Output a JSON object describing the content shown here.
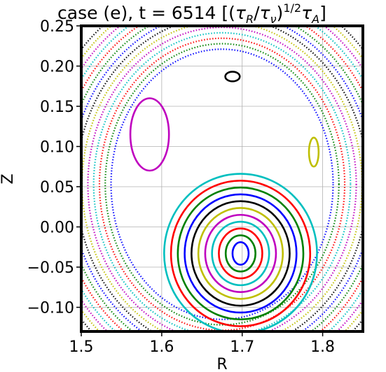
{
  "chart_data": {
    "type": "scatter",
    "title": "case (e), t = 6514 [(τR/τν)1/2τA]",
    "title_parts": {
      "prefix": "case (e), t = 6514 [(",
      "tau": "τ",
      "sub_r": "R",
      "slash": "/",
      "sub_nu": "ν",
      "close": ")",
      "exponent": "1/2",
      "sub_a": "A",
      "end": "]"
    },
    "xlabel": "R",
    "ylabel": "Z",
    "xlim": [
      1.5,
      1.85
    ],
    "ylim": [
      -0.13,
      0.25
    ],
    "xticks": [
      1.5,
      1.6,
      1.7,
      1.8
    ],
    "xtick_labels": [
      "1.5",
      "1.6",
      "1.7",
      "1.8"
    ],
    "yticks": [
      -0.1,
      -0.05,
      0.0,
      0.05,
      0.1,
      0.15,
      0.2,
      0.25
    ],
    "ytick_labels": [
      "−0.10",
      "−0.05",
      "0.00",
      "0.05",
      "0.10",
      "0.15",
      "0.20",
      "0.25"
    ],
    "grid": true,
    "palette": [
      "#0000ff",
      "#008000",
      "#ff0000",
      "#00bfbf",
      "#bf00bf",
      "#bfbf00",
      "#000000"
    ],
    "islands": [
      {
        "name": "lower-o-point",
        "center": [
          1.698,
          -0.033
        ],
        "base_semi_axes": [
          0.01,
          0.014
        ],
        "step": [
          0.0085,
          0.0085
        ],
        "count": 11,
        "style": "line"
      },
      {
        "name": "upper-left-o-point",
        "center": [
          1.585,
          0.115
        ],
        "base_semi_axes": [
          0.024,
          0.045
        ],
        "step": [
          0.0,
          0.0
        ],
        "count": 1,
        "style": "line"
      },
      {
        "name": "right-small-island",
        "center": [
          1.789,
          0.093
        ],
        "base_semi_axes": [
          0.006,
          0.018
        ],
        "step": [
          0.0,
          0.0
        ],
        "count": 1,
        "style": "line"
      },
      {
        "name": "top-small-island",
        "center": [
          1.688,
          0.187
        ],
        "base_semi_axes": [
          0.009,
          0.006
        ],
        "step": [
          0.0,
          0.0
        ],
        "count": 1,
        "style": "line"
      }
    ],
    "outer_surfaces": {
      "center": [
        1.675,
        0.053
      ],
      "base_semi_axes": [
        0.138,
        0.168
      ],
      "step": [
        0.0072,
        0.0068
      ],
      "count": 14,
      "style": "dots"
    }
  }
}
